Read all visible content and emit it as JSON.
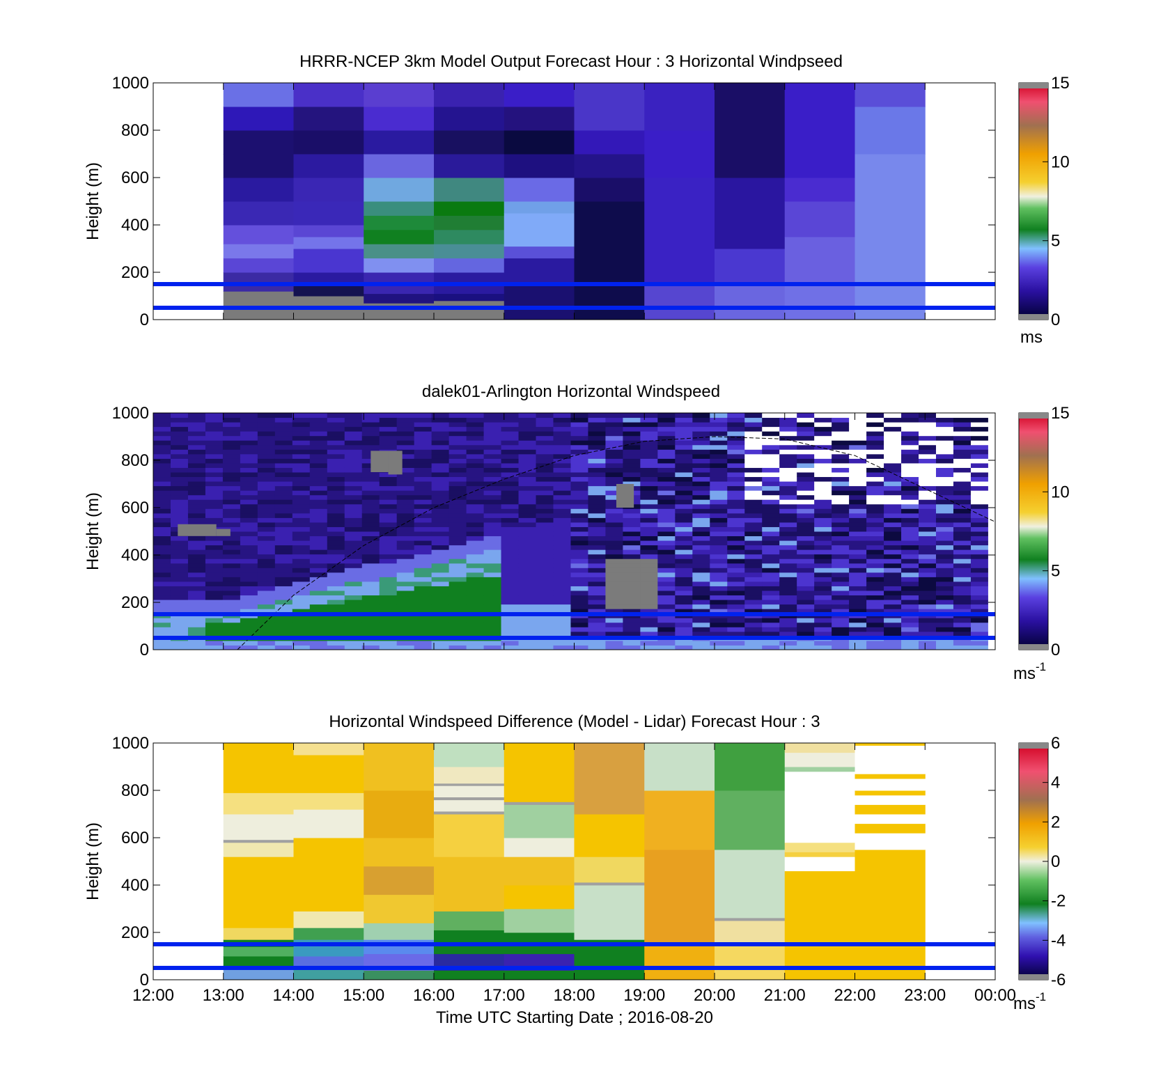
{
  "chart_data": [
    {
      "type": "heatmap",
      "id": "model",
      "title": "HRRR-NCEP 3km Model Output   Forecast Hour : 3 Horizontal Windpseed",
      "ylabel": "Height (m)",
      "xlim_hours": [
        12,
        24
      ],
      "ylim": [
        0,
        1000
      ],
      "yticks": [
        "0",
        "200",
        "400",
        "600",
        "800",
        "1000"
      ],
      "colorbar": {
        "ticks": [
          "0",
          "5",
          "10",
          "15"
        ],
        "range": [
          0,
          15
        ],
        "unit": "ms"
      },
      "reference_lines_m": [
        50,
        150
      ],
      "data_hours": [
        13,
        23
      ],
      "columns": [
        [
          [
            "#7b7b7b",
            0,
            30
          ],
          [
            "#7b7b7b",
            30,
            120
          ],
          [
            "#3b2aa4",
            120,
            200
          ],
          [
            "#5a46d6",
            200,
            260
          ],
          [
            "#7a78ea",
            260,
            320
          ],
          [
            "#6450dc",
            320,
            400
          ],
          [
            "#3a28b4",
            400,
            500
          ],
          [
            "#2a1aa0",
            500,
            600
          ],
          [
            "#1c1070",
            600,
            700
          ],
          [
            "#1c1070",
            700,
            800
          ],
          [
            "#2e18b8",
            800,
            900
          ],
          [
            "#6a70e6",
            900,
            1000
          ]
        ],
        [
          [
            "#7b7b7b",
            0,
            100
          ],
          [
            "#141250",
            100,
            150
          ],
          [
            "#2a1aa0",
            150,
            200
          ],
          [
            "#4a36d0",
            200,
            300
          ],
          [
            "#7474ea",
            300,
            350
          ],
          [
            "#5a46d4",
            350,
            400
          ],
          [
            "#3a28b8",
            400,
            500
          ],
          [
            "#3a26b4",
            500,
            600
          ],
          [
            "#2c1aa0",
            600,
            700
          ],
          [
            "#1a0e68",
            700,
            800
          ],
          [
            "#24147e",
            800,
            900
          ],
          [
            "#4a30c8",
            900,
            1000
          ]
        ],
        [
          [
            "#7b7b7b",
            0,
            70
          ],
          [
            "#201280",
            70,
            110
          ],
          [
            "#3a26b0",
            110,
            200
          ],
          [
            "#8090f0",
            200,
            260
          ],
          [
            "#4a9088",
            260,
            320
          ],
          [
            "#108020",
            320,
            380
          ],
          [
            "#1e8a3a",
            380,
            440
          ],
          [
            "#3a8e7e",
            440,
            500
          ],
          [
            "#70a8e0",
            500,
            600
          ],
          [
            "#6a66e0",
            600,
            700
          ],
          [
            "#2a1aa0",
            700,
            800
          ],
          [
            "#4a2cd0",
            800,
            900
          ],
          [
            "#5a3ed0",
            900,
            1000
          ]
        ],
        [
          [
            "#7b7b7b",
            0,
            80
          ],
          [
            "#1a1080",
            80,
            110
          ],
          [
            "#2a1aa0",
            110,
            200
          ],
          [
            "#6466e0",
            200,
            260
          ],
          [
            "#4a8e96",
            260,
            320
          ],
          [
            "#2e8a60",
            320,
            380
          ],
          [
            "#207e34",
            380,
            440
          ],
          [
            "#0a7a10",
            440,
            500
          ],
          [
            "#408880",
            500,
            600
          ],
          [
            "#2a1a9a",
            600,
            700
          ],
          [
            "#181060",
            700,
            800
          ],
          [
            "#241490",
            800,
            900
          ],
          [
            "#3a22b0",
            900,
            1000
          ]
        ],
        [
          [
            "#1a1070",
            0,
            150
          ],
          [
            "#2a1aa0",
            150,
            260
          ],
          [
            "#5a50d8",
            260,
            310
          ],
          [
            "#80aaf8",
            310,
            450
          ],
          [
            "#70a0e8",
            450,
            500
          ],
          [
            "#6a6ae6",
            500,
            600
          ],
          [
            "#1e1080",
            600,
            700
          ],
          [
            "#0a0a40",
            700,
            800
          ],
          [
            "#24127e",
            800,
            900
          ],
          [
            "#3a1ec8",
            900,
            1000
          ]
        ],
        [
          [
            "#0e0c4c",
            0,
            200
          ],
          [
            "#0e0c4c",
            200,
            500
          ],
          [
            "#1a0e68",
            500,
            600
          ],
          [
            "#24148a",
            600,
            700
          ],
          [
            "#3318b8",
            700,
            800
          ],
          [
            "#4a36c8",
            800,
            1000
          ]
        ],
        [
          [
            "#5646d0",
            0,
            150
          ],
          [
            "#3a22c4",
            150,
            600
          ],
          [
            "#3a1ec8",
            600,
            800
          ],
          [
            "#3a22c0",
            800,
            1000
          ]
        ],
        [
          [
            "#6a66e0",
            0,
            150
          ],
          [
            "#4a38d0",
            150,
            300
          ],
          [
            "#2a16a0",
            300,
            600
          ],
          [
            "#1a0e66",
            600,
            800
          ],
          [
            "#1a0e66",
            800,
            1000
          ]
        ],
        [
          [
            "#7070e6",
            0,
            150
          ],
          [
            "#6a60e0",
            150,
            350
          ],
          [
            "#5a46d6",
            350,
            500
          ],
          [
            "#4a2cd0",
            500,
            600
          ],
          [
            "#3a1ec8",
            600,
            1000
          ]
        ],
        [
          [
            "#7888ec",
            0,
            700
          ],
          [
            "#6a78e8",
            700,
            900
          ],
          [
            "#5a4ed8",
            900,
            1000
          ]
        ]
      ]
    },
    {
      "type": "heatmap",
      "id": "lidar",
      "title": "dalek01-Arlington  Horizontal Windspeed",
      "ylabel": "Height (m)",
      "xlim_hours": [
        12,
        24
      ],
      "ylim": [
        0,
        1000
      ],
      "yticks": [
        "0",
        "200",
        "400",
        "600",
        "800",
        "1000"
      ],
      "colorbar": {
        "ticks": [
          "0",
          "5",
          "10",
          "15"
        ],
        "range": [
          0,
          15
        ],
        "unit": "ms",
        "unit_sup": "-1"
      },
      "reference_lines_m": [
        50,
        150
      ],
      "data_hours": [
        12,
        23.9
      ],
      "curve": {
        "style": "dashed",
        "x_hours": [
          13.2,
          14,
          15,
          16,
          17,
          18,
          19,
          20,
          21,
          22,
          23,
          24
        ],
        "y_m": [
          0,
          230,
          440,
          600,
          720,
          820,
          880,
          900,
          890,
          820,
          680,
          540
        ]
      }
    },
    {
      "type": "heatmap",
      "id": "difference",
      "title": "Horizontal Windspeed Difference (Model - Lidar) Forecast Hour : 3",
      "ylabel": "Height (m)",
      "xlabel": "Time UTC  Starting Date ; 2016-08-20",
      "xlim_hours": [
        12,
        24
      ],
      "ylim": [
        0,
        1000
      ],
      "yticks": [
        "0",
        "200",
        "400",
        "600",
        "800",
        "1000"
      ],
      "xticks": [
        "12:00",
        "13:00",
        "14:00",
        "15:00",
        "16:00",
        "17:00",
        "18:00",
        "19:00",
        "20:00",
        "21:00",
        "22:00",
        "23:00",
        "00:00"
      ],
      "colorbar": {
        "ticks": [
          "-6",
          "-4",
          "-2",
          "0",
          "2",
          "4",
          "6"
        ],
        "range": [
          -6,
          6
        ],
        "unit": "ms",
        "unit_sup": "-1"
      },
      "reference_lines_m": [
        50,
        150
      ],
      "data_hours": [
        13,
        23
      ],
      "columns": [
        [
          [
            "#70a0e0",
            0,
            60
          ],
          [
            "#108020",
            60,
            100
          ],
          [
            "#50b060",
            100,
            140
          ],
          [
            "#108020",
            140,
            170
          ],
          [
            "#f0d860",
            170,
            220
          ],
          [
            "#f5c400",
            220,
            520
          ],
          [
            "#f0e8b0",
            520,
            580
          ],
          [
            "#a0a0a0",
            580,
            592
          ],
          [
            "#eeeedd",
            592,
            700
          ],
          [
            "#f5e080",
            700,
            790
          ],
          [
            "#f5c400",
            790,
            1000
          ]
        ],
        [
          [
            "#40a0a0",
            0,
            60
          ],
          [
            "#5a6ee0",
            60,
            100
          ],
          [
            "#3a9ac0",
            100,
            170
          ],
          [
            "#40a050",
            170,
            220
          ],
          [
            "#f0e8b0",
            220,
            290
          ],
          [
            "#f5c400",
            290,
            600
          ],
          [
            "#eeeedd",
            600,
            720
          ],
          [
            "#f5e080",
            720,
            790
          ],
          [
            "#f5c400",
            790,
            950
          ],
          [
            "#f5e090",
            950,
            1000
          ]
        ],
        [
          [
            "#3a9060",
            0,
            40
          ],
          [
            "#6a6ae8",
            40,
            110
          ],
          [
            "#5a8aee",
            110,
            170
          ],
          [
            "#a0d0b0",
            170,
            240
          ],
          [
            "#f0c830",
            240,
            360
          ],
          [
            "#d8a030",
            360,
            480
          ],
          [
            "#f0c020",
            480,
            600
          ],
          [
            "#e8ac10",
            600,
            800
          ],
          [
            "#f0c020",
            800,
            1000
          ]
        ],
        [
          [
            "#108020",
            0,
            40
          ],
          [
            "#2a2aa0",
            40,
            110
          ],
          [
            "#108020",
            110,
            210
          ],
          [
            "#60b060",
            210,
            290
          ],
          [
            "#f0c020",
            290,
            520
          ],
          [
            "#f5d040",
            520,
            700
          ],
          [
            "#a0a0a0",
            700,
            712
          ],
          [
            "#eeeedd",
            712,
            760
          ],
          [
            "#a0a0a0",
            760,
            772
          ],
          [
            "#eeeedd",
            772,
            820
          ],
          [
            "#a0a0a0",
            820,
            830
          ],
          [
            "#f0e8c0",
            830,
            900
          ],
          [
            "#c0e0c0",
            900,
            1000
          ]
        ],
        [
          [
            "#108020",
            0,
            40
          ],
          [
            "#3a22b0",
            40,
            110
          ],
          [
            "#108020",
            110,
            200
          ],
          [
            "#a0d0a0",
            200,
            300
          ],
          [
            "#f5c400",
            300,
            400
          ],
          [
            "#f0c020",
            400,
            520
          ],
          [
            "#eeeedd",
            520,
            600
          ],
          [
            "#a0d0a0",
            600,
            740
          ],
          [
            "#a0a0a0",
            740,
            752
          ],
          [
            "#f5c400",
            752,
            1000
          ]
        ],
        [
          [
            "#108020",
            0,
            150
          ],
          [
            "#108020",
            150,
            170
          ],
          [
            "#c8e0c8",
            170,
            400
          ],
          [
            "#a0a0a0",
            400,
            412
          ],
          [
            "#f0d860",
            412,
            520
          ],
          [
            "#f5c400",
            520,
            700
          ],
          [
            "#d8a040",
            700,
            1000
          ]
        ],
        [
          [
            "#f0b010",
            0,
            150
          ],
          [
            "#e8a020",
            150,
            550
          ],
          [
            "#f0b020",
            550,
            800
          ],
          [
            "#c8e0c8",
            800,
            1000
          ]
        ],
        [
          [
            "#f5d860",
            0,
            150
          ],
          [
            "#f0e0a0",
            150,
            250
          ],
          [
            "#a0a0a0",
            250,
            262
          ],
          [
            "#c8e0c8",
            262,
            550
          ],
          [
            "#60b060",
            550,
            800
          ],
          [
            "#40a040",
            800,
            1000
          ]
        ],
        [
          [
            "#f5c400",
            0,
            460
          ],
          [
            "#ffffff",
            460,
            520
          ],
          [
            "#f5d040",
            520,
            540
          ],
          [
            "#f5e080",
            540,
            580
          ],
          [
            "#ffffff",
            580,
            880
          ],
          [
            "#a0d0a0",
            880,
            900
          ],
          [
            "#eeeedd",
            900,
            960
          ],
          [
            "#f0e0a0",
            960,
            1000
          ]
        ],
        [
          [
            "#f5c400",
            0,
            550
          ],
          [
            "#ffffff",
            550,
            620
          ],
          [
            "#f5c400",
            620,
            660
          ],
          [
            "#ffffff",
            660,
            700
          ],
          [
            "#f5c400",
            700,
            740
          ],
          [
            "#ffffff",
            740,
            780
          ],
          [
            "#f5c400",
            780,
            800
          ],
          [
            "#ffffff",
            800,
            850
          ],
          [
            "#f5c400",
            850,
            870
          ],
          [
            "#ffffff",
            870,
            990
          ],
          [
            "#f5c400",
            990,
            1000
          ]
        ]
      ]
    }
  ]
}
